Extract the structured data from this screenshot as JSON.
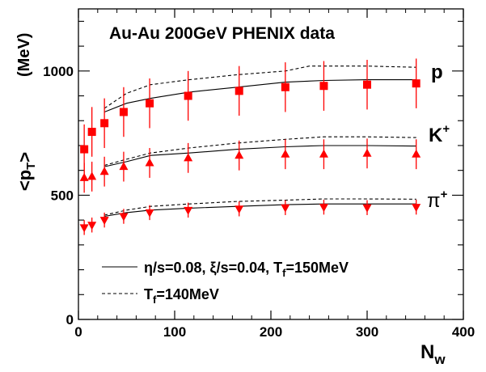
{
  "chart_data": {
    "type": "scatter",
    "title": "Au-Au 200GeV  PHENIX data",
    "xlabel": {
      "main": "N",
      "sub": "w"
    },
    "ylabel": {
      "pre": "<p",
      "sub": "T",
      "post": ">",
      "unit": "(MeV)"
    },
    "xlim": [
      0,
      400
    ],
    "ylim": [
      0,
      1250
    ],
    "xticks": [
      0,
      100,
      200,
      300,
      400
    ],
    "yticks": [
      0,
      500,
      1000
    ],
    "grid": false,
    "legend_placement": "bottom-left",
    "legend": [
      {
        "style": "solid",
        "parts": [
          {
            "t": "η/s=0.08, ξ/s=0.04, T",
            "s": "normal"
          },
          {
            "t": "f",
            "s": "sub"
          },
          {
            "t": "=150MeV",
            "s": "normal"
          }
        ]
      },
      {
        "style": "dashed",
        "parts": [
          {
            "t": "T",
            "s": "normal"
          },
          {
            "t": "f",
            "s": "sub"
          },
          {
            "t": "=140MeV",
            "s": "normal"
          }
        ]
      }
    ],
    "data_color": "#ff0000",
    "line_color": "#000000",
    "species": [
      {
        "label": {
          "main": "p",
          "sup": ""
        },
        "marker": "square",
        "points": [
          {
            "x": 6,
            "y": 685,
            "err": 100
          },
          {
            "x": 14,
            "y": 755,
            "err": 100
          },
          {
            "x": 27,
            "y": 790,
            "err": 100
          },
          {
            "x": 47,
            "y": 835,
            "err": 100
          },
          {
            "x": 74,
            "y": 870,
            "err": 100
          },
          {
            "x": 114,
            "y": 900,
            "err": 100
          },
          {
            "x": 167,
            "y": 920,
            "err": 100
          },
          {
            "x": 215,
            "y": 935,
            "err": 100
          },
          {
            "x": 255,
            "y": 940,
            "err": 100
          },
          {
            "x": 300,
            "y": 945,
            "err": 100
          },
          {
            "x": 351,
            "y": 950,
            "err": 100
          }
        ],
        "solid": [
          [
            27,
            835
          ],
          [
            50,
            870
          ],
          [
            75,
            890
          ],
          [
            115,
            915
          ],
          [
            165,
            935
          ],
          [
            215,
            955
          ],
          [
            255,
            962
          ],
          [
            300,
            965
          ],
          [
            351,
            965
          ]
        ],
        "dashed": [
          [
            27,
            850
          ],
          [
            50,
            910
          ],
          [
            75,
            945
          ],
          [
            115,
            965
          ],
          [
            165,
            985
          ],
          [
            215,
            1000
          ],
          [
            240,
            1020
          ],
          [
            300,
            1020
          ],
          [
            351,
            1015
          ]
        ]
      },
      {
        "label": {
          "main": "K",
          "sup": "+"
        },
        "marker": "triangle-up",
        "points": [
          {
            "x": 6,
            "y": 570,
            "err": 60
          },
          {
            "x": 14,
            "y": 575,
            "err": 60
          },
          {
            "x": 27,
            "y": 595,
            "err": 60
          },
          {
            "x": 47,
            "y": 615,
            "err": 60
          },
          {
            "x": 74,
            "y": 630,
            "err": 60
          },
          {
            "x": 114,
            "y": 650,
            "err": 60
          },
          {
            "x": 167,
            "y": 660,
            "err": 60
          },
          {
            "x": 215,
            "y": 665,
            "err": 60
          },
          {
            "x": 255,
            "y": 665,
            "err": 60
          },
          {
            "x": 300,
            "y": 668,
            "err": 60
          },
          {
            "x": 351,
            "y": 665,
            "err": 60
          }
        ],
        "solid": [
          [
            27,
            615
          ],
          [
            50,
            635
          ],
          [
            75,
            660
          ],
          [
            115,
            670
          ],
          [
            165,
            685
          ],
          [
            215,
            695
          ],
          [
            255,
            700
          ],
          [
            300,
            700
          ],
          [
            351,
            698
          ]
        ],
        "dashed": [
          [
            27,
            620
          ],
          [
            50,
            645
          ],
          [
            75,
            670
          ],
          [
            115,
            690
          ],
          [
            165,
            710
          ],
          [
            215,
            725
          ],
          [
            255,
            735
          ],
          [
            300,
            735
          ],
          [
            351,
            732
          ]
        ]
      },
      {
        "label": {
          "main": "π",
          "sup": "+"
        },
        "marker": "triangle-down",
        "points": [
          {
            "x": 6,
            "y": 370,
            "err": 30
          },
          {
            "x": 14,
            "y": 380,
            "err": 30
          },
          {
            "x": 27,
            "y": 400,
            "err": 30
          },
          {
            "x": 47,
            "y": 415,
            "err": 30
          },
          {
            "x": 74,
            "y": 430,
            "err": 30
          },
          {
            "x": 114,
            "y": 440,
            "err": 30
          },
          {
            "x": 167,
            "y": 445,
            "err": 30
          },
          {
            "x": 215,
            "y": 450,
            "err": 30
          },
          {
            "x": 255,
            "y": 452,
            "err": 30
          },
          {
            "x": 300,
            "y": 450,
            "err": 30
          },
          {
            "x": 351,
            "y": 452,
            "err": 30
          }
        ],
        "solid": [
          [
            27,
            415
          ],
          [
            50,
            430
          ],
          [
            75,
            440
          ],
          [
            115,
            448
          ],
          [
            165,
            455
          ],
          [
            215,
            462
          ],
          [
            255,
            465
          ],
          [
            300,
            465
          ],
          [
            351,
            465
          ]
        ],
        "dashed": [
          [
            27,
            420
          ],
          [
            50,
            440
          ],
          [
            75,
            455
          ],
          [
            115,
            465
          ],
          [
            165,
            475
          ],
          [
            215,
            480
          ],
          [
            255,
            485
          ],
          [
            300,
            485
          ],
          [
            351,
            484
          ]
        ]
      }
    ]
  }
}
